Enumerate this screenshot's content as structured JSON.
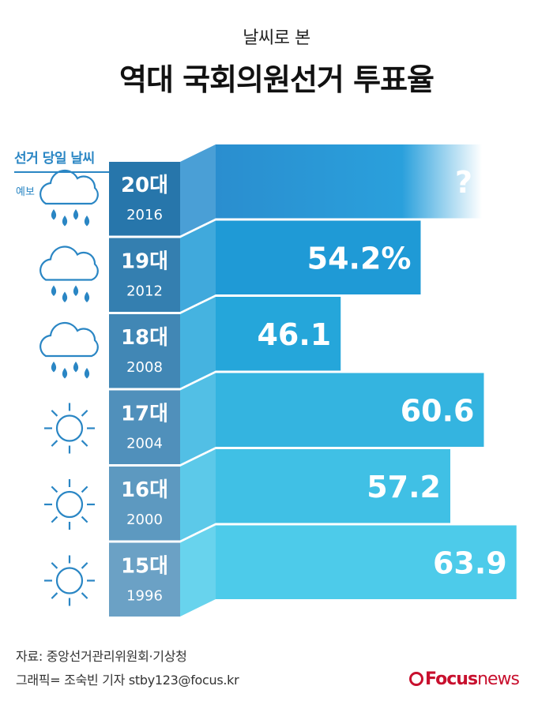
{
  "header": {
    "subtitle": "날씨로 본",
    "title": "역대 국회의원선거 투표율"
  },
  "weather": {
    "heading": "선거 당일 날씨",
    "forecast_label": "예보"
  },
  "chart_data": {
    "type": "bar",
    "orientation": "horizontal",
    "categories": [
      "20대",
      "19대",
      "18대",
      "17대",
      "16대",
      "15대"
    ],
    "years": [
      "2016",
      "2012",
      "2008",
      "2004",
      "2000",
      "1996"
    ],
    "values": [
      null,
      54.2,
      46.1,
      60.6,
      57.2,
      63.9
    ],
    "value_labels": [
      "?",
      "54.2%",
      "46.1",
      "60.6",
      "57.2",
      "63.9"
    ],
    "weather_icons": [
      "rain-icon",
      "rain-icon",
      "rain-icon",
      "sun-icon",
      "sun-icon",
      "sun-icon"
    ],
    "colors": {
      "label_dark": "#1b6fa6",
      "bars": [
        "#2a8ecf",
        "#1f9ad6",
        "#25a6da",
        "#34b4e0",
        "#40c0e5",
        "#4dcbea"
      ],
      "weather_icon": "#2a86c4"
    }
  },
  "footer": {
    "source": "자료: 중앙선거관리위원회·기상청",
    "credit": "그래픽= 조숙빈 기자 stby123@focus.kr",
    "logo_focus": "Focus",
    "logo_news": "news"
  }
}
